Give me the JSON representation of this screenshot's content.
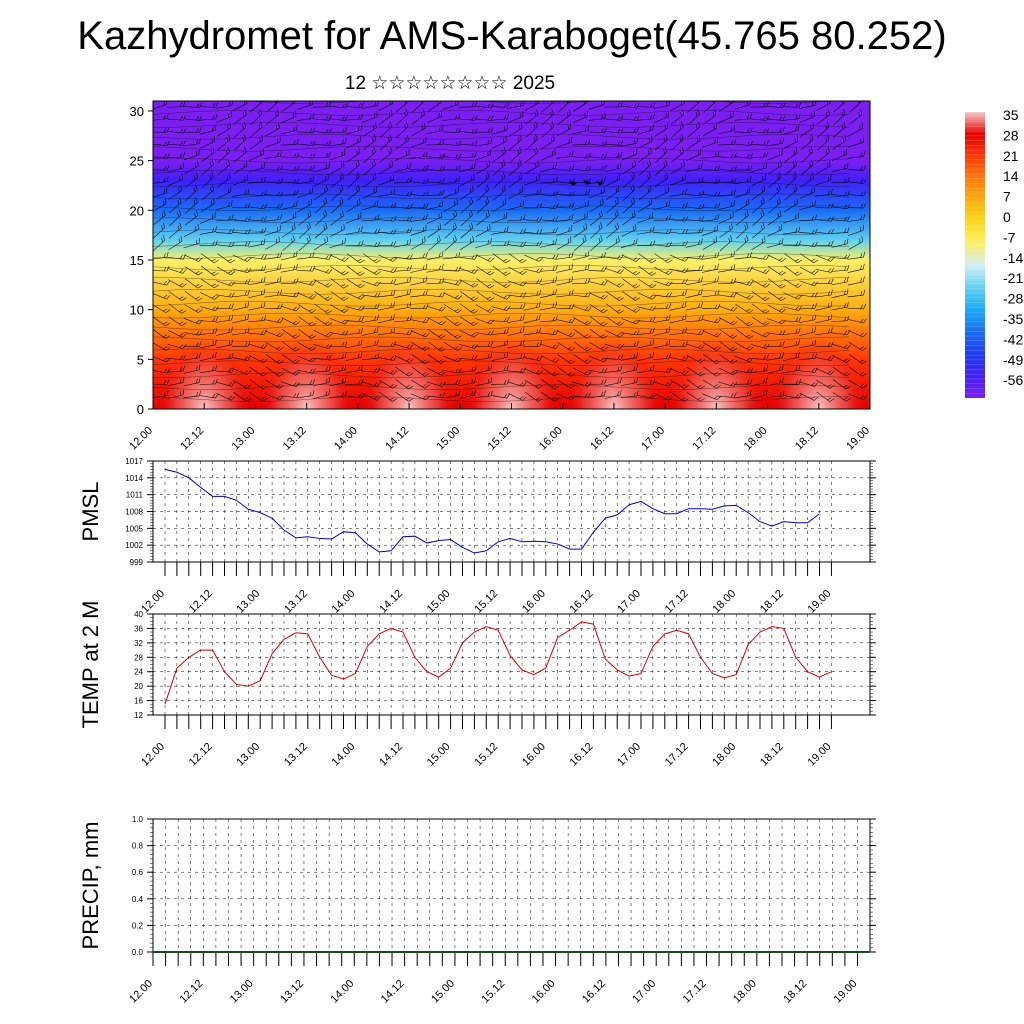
{
  "title": "Kazhydromet for AMS-Karaboget(45.765 80.252)",
  "subtitle": "12 ☆☆☆☆☆☆☆☆ 2025",
  "x_tick_labels": [
    "12.00",
    "12.12",
    "13.00",
    "13.12",
    "14.00",
    "14.12",
    "15.00",
    "15.12",
    "16.00",
    "16.12",
    "17.00",
    "17.12",
    "18.00",
    "18.12",
    "19.00"
  ],
  "colorbar_labels": [
    "35",
    "28",
    "21",
    "14",
    "7",
    "0",
    "-7",
    "-14",
    "-21",
    "-28",
    "-35",
    "-42",
    "-49",
    "-56"
  ],
  "chart_data": [
    {
      "type": "heatmap",
      "title": "",
      "ylabel": "",
      "ylim": [
        0,
        31
      ],
      "y_ticks": [
        0,
        5,
        10,
        15,
        20,
        25,
        30
      ],
      "x_ticks": [
        "12.00",
        "12.12",
        "13.00",
        "13.12",
        "14.00",
        "14.12",
        "15.00",
        "15.12",
        "16.00",
        "16.12",
        "17.00",
        "17.12",
        "18.00",
        "18.12",
        "19.00"
      ],
      "color_scale": {
        "min": -56,
        "max": 35
      },
      "overlay": "wind barbs",
      "temperature_profile": [
        {
          "height": 0,
          "value": 28
        },
        {
          "height": 5,
          "value": 20
        },
        {
          "height": 10,
          "value": 8
        },
        {
          "height": 15,
          "value": -8
        },
        {
          "height": 17,
          "value": -20
        },
        {
          "height": 20,
          "value": -35
        },
        {
          "height": 23,
          "value": -48
        },
        {
          "height": 25,
          "value": -54
        },
        {
          "height": 28,
          "value": -55
        },
        {
          "height": 31,
          "value": -56
        }
      ]
    },
    {
      "type": "line",
      "ylabel": "PMSL",
      "ylim": [
        999,
        1017
      ],
      "y_ticks": [
        999,
        1002,
        1005,
        1008,
        1011,
        1014,
        1017
      ],
      "x_ticks": [
        "12.00",
        "12.12",
        "13.00",
        "13.12",
        "14.00",
        "14.12",
        "15.00",
        "15.12",
        "16.00",
        "16.12",
        "17.00",
        "17.12",
        "18.00",
        "18.12",
        "19.00"
      ],
      "color": "#0000cc",
      "series": [
        {
          "values": [
            1015.5,
            1015,
            1014,
            1012.3,
            1010.7,
            1010.7,
            1010,
            1008.4,
            1007.8,
            1006.8,
            1004.7,
            1003.3,
            1003.5,
            1003.2,
            1003.1,
            1004.4,
            1004.2,
            1002.2,
            1000.8,
            1001,
            1003.5,
            1003.6,
            1002.4,
            1002.8,
            1003,
            1001.6,
            1000.6,
            1001,
            1002.6,
            1003.2,
            1002.6,
            1002.7,
            1002.6,
            1002.2,
            1001.3,
            1001.3,
            1004.3,
            1006.8,
            1007.4,
            1009.2,
            1009.8,
            1008.5,
            1007.6,
            1007.6,
            1008.5,
            1008.5,
            1008.4,
            1009,
            1009.1,
            1007.8,
            1006.2,
            1005.4,
            1006.2,
            1006,
            1006,
            1007.6
          ]
        }
      ]
    },
    {
      "type": "line",
      "ylabel": "TEMP at 2 M",
      "ylim": [
        12,
        40
      ],
      "y_ticks": [
        12,
        16,
        20,
        24,
        28,
        32,
        36,
        40
      ],
      "x_ticks": [
        "12.00",
        "12.12",
        "13.00",
        "13.12",
        "14.00",
        "14.12",
        "15.00",
        "15.12",
        "16.00",
        "16.12",
        "17.00",
        "17.12",
        "18.00",
        "18.12",
        "19.00"
      ],
      "color": "#dd0000",
      "series": [
        {
          "values": [
            15,
            25,
            28,
            30,
            30,
            24,
            20.5,
            20,
            21.5,
            29,
            33,
            34.8,
            34.5,
            28,
            23,
            22,
            23.5,
            31,
            34.5,
            36,
            35,
            28,
            24,
            22.5,
            25,
            32,
            35,
            36.5,
            35.5,
            28.5,
            24.5,
            23.2,
            25,
            33.5,
            35.5,
            37.8,
            37.2,
            27.5,
            24.5,
            22.8,
            23.5,
            31,
            34.5,
            35.5,
            34.5,
            28,
            23.5,
            22.3,
            23.2,
            31.5,
            35,
            36.5,
            36,
            28,
            24,
            22.5,
            24
          ]
        }
      ]
    },
    {
      "type": "bar",
      "ylabel": "PRECIP, mm",
      "ylim": [
        0,
        1
      ],
      "y_ticks": [
        "0.0",
        "0.2",
        "0.4",
        "0.6",
        "0.8",
        "1.0"
      ],
      "x_ticks": [
        "12.00",
        "12.12",
        "13.00",
        "13.12",
        "14.00",
        "14.12",
        "15.00",
        "15.12",
        "16.00",
        "16.12",
        "17.00",
        "17.12",
        "18.00",
        "18.12",
        "19.00"
      ],
      "values": []
    }
  ]
}
